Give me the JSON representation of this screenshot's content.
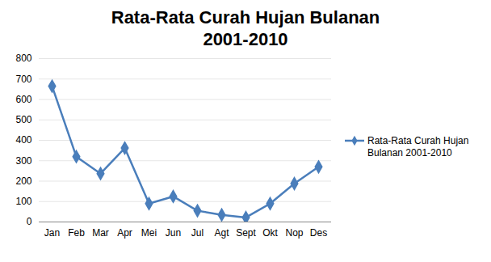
{
  "chart_data": {
    "type": "line",
    "title": "Rata-Rata Curah Hujan Bulanan 2001-2010",
    "categories": [
      "Jan",
      "Feb",
      "Mar",
      "Apr",
      "Mei",
      "Jun",
      "Jul",
      "Agt",
      "Sept",
      "Okt",
      "Nop",
      "Des"
    ],
    "series": [
      {
        "name": "Rata-Rata Curah Hujan Bulanan 2001-2010",
        "color": "#4a7ebb",
        "marker": "diamond",
        "values": [
          665,
          320,
          237,
          362,
          90,
          125,
          55,
          35,
          22,
          90,
          188,
          270
        ]
      }
    ],
    "ylim": [
      0,
      800
    ],
    "yticks": [
      0,
      100,
      200,
      300,
      400,
      500,
      600,
      700,
      800
    ],
    "grid": true,
    "legend": "right"
  }
}
